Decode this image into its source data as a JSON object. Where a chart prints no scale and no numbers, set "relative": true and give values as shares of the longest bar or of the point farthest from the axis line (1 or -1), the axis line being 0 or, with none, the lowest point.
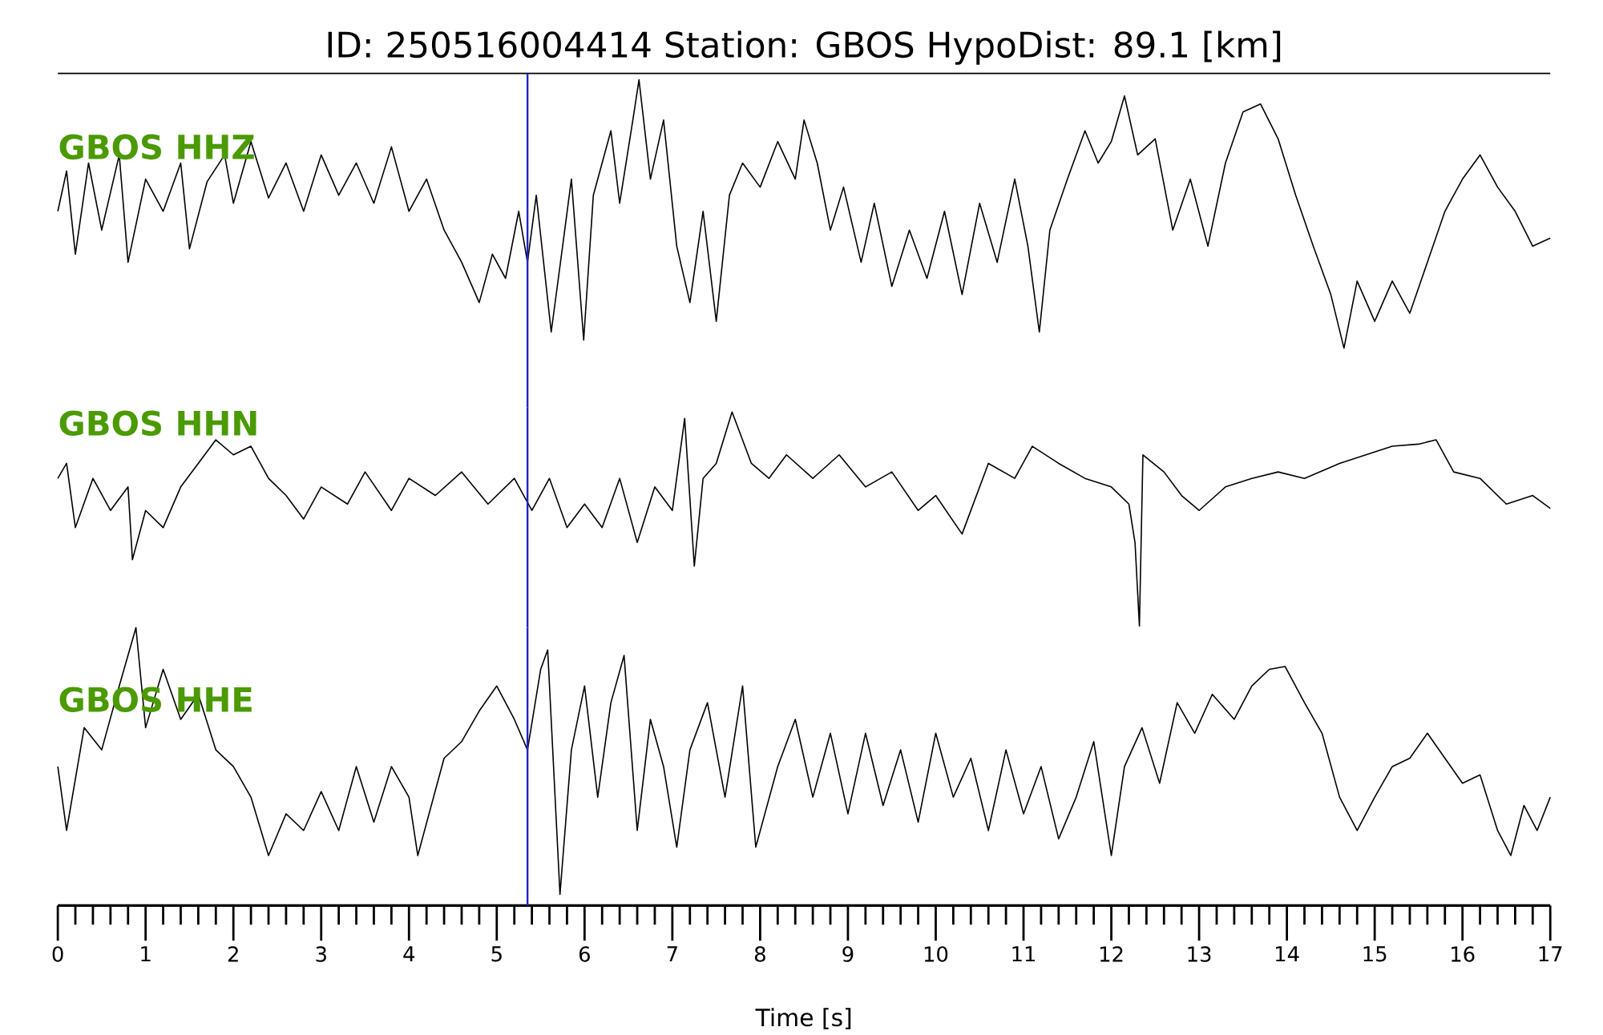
{
  "chart_data": [
    {
      "type": "line",
      "title": "ID: 250516004414 Station: GBOS HypoDist: 89.1 [km]",
      "relative": true,
      "xlim": [
        0,
        17
      ],
      "tick_labels": false,
      "ref_lines": [
        {
          "axis": "x",
          "value": 5.35,
          "color": "#2222cc"
        }
      ],
      "series": [
        {
          "name": "GBOS HHZ",
          "color": "#000000",
          "x": [
            0,
            0.1,
            0.2,
            0.35,
            0.5,
            0.7,
            0.8,
            1.0,
            1.2,
            1.4,
            1.5,
            1.7,
            1.9,
            2.0,
            2.2,
            2.4,
            2.6,
            2.8,
            3.0,
            3.2,
            3.4,
            3.6,
            3.8,
            4.0,
            4.2,
            4.4,
            4.6,
            4.8,
            4.95,
            5.1,
            5.25,
            5.35,
            5.45,
            5.62,
            5.75,
            5.85,
            5.99,
            6.1,
            6.3,
            6.4,
            6.55,
            6.62,
            6.75,
            6.9,
            7.05,
            7.2,
            7.35,
            7.5,
            7.65,
            7.8,
            8.0,
            8.2,
            8.4,
            8.5,
            8.65,
            8.8,
            8.95,
            9.15,
            9.3,
            9.5,
            9.7,
            9.9,
            10.1,
            10.3,
            10.5,
            10.7,
            10.9,
            11.05,
            11.18,
            11.3,
            11.5,
            11.7,
            11.85,
            12.0,
            12.15,
            12.3,
            12.5,
            12.7,
            12.9,
            13.1,
            13.3,
            13.5,
            13.7,
            13.9,
            14.1,
            14.3,
            14.5,
            14.65,
            14.8,
            15.0,
            15.2,
            15.4,
            15.6,
            15.8,
            16.0,
            16.2,
            16.4,
            16.6,
            16.8,
            17.0
          ],
          "values": [
            0.51,
            0.66,
            0.35,
            0.69,
            0.44,
            0.72,
            0.32,
            0.63,
            0.51,
            0.69,
            0.37,
            0.62,
            0.72,
            0.54,
            0.77,
            0.56,
            0.69,
            0.51,
            0.72,
            0.57,
            0.69,
            0.54,
            0.75,
            0.51,
            0.63,
            0.44,
            0.32,
            0.17,
            0.35,
            0.26,
            0.51,
            0.32,
            0.57,
            0.06,
            0.38,
            0.63,
            0.03,
            0.57,
            0.81,
            0.54,
            0.85,
            1.0,
            0.63,
            0.85,
            0.38,
            0.17,
            0.51,
            0.1,
            0.57,
            0.69,
            0.6,
            0.77,
            0.63,
            0.85,
            0.69,
            0.44,
            0.6,
            0.32,
            0.54,
            0.23,
            0.44,
            0.26,
            0.51,
            0.2,
            0.54,
            0.32,
            0.63,
            0.38,
            0.06,
            0.44,
            0.63,
            0.81,
            0.69,
            0.77,
            0.94,
            0.72,
            0.78,
            0.44,
            0.63,
            0.38,
            0.69,
            0.88,
            0.91,
            0.78,
            0.57,
            0.38,
            0.2,
            0.0,
            0.25,
            0.1,
            0.25,
            0.13,
            0.32,
            0.51,
            0.63,
            0.72,
            0.6,
            0.51,
            0.38,
            0.41
          ]
        }
      ]
    },
    {
      "type": "line",
      "relative": true,
      "xlim": [
        0,
        17
      ],
      "tick_labels": false,
      "ref_lines": [
        {
          "axis": "x",
          "value": 5.35,
          "color": "#2222cc"
        }
      ],
      "series": [
        {
          "name": "GBOS HHN",
          "color": "#000000",
          "x": [
            0,
            0.1,
            0.2,
            0.4,
            0.6,
            0.8,
            0.85,
            1.0,
            1.2,
            1.4,
            1.6,
            1.8,
            2.0,
            2.2,
            2.4,
            2.6,
            2.8,
            3.0,
            3.3,
            3.5,
            3.8,
            4.0,
            4.3,
            4.6,
            4.9,
            5.2,
            5.4,
            5.6,
            5.8,
            6.0,
            6.2,
            6.4,
            6.6,
            6.8,
            7.0,
            7.14,
            7.25,
            7.35,
            7.5,
            7.68,
            7.9,
            8.1,
            8.3,
            8.6,
            8.9,
            9.2,
            9.5,
            9.8,
            10.0,
            10.3,
            10.6,
            10.9,
            11.1,
            11.4,
            11.7,
            12.0,
            12.2,
            12.27,
            12.32,
            12.36,
            12.6,
            12.8,
            13.0,
            13.3,
            13.6,
            13.9,
            14.2,
            14.6,
            14.9,
            15.2,
            15.5,
            15.7,
            15.9,
            16.2,
            16.5,
            16.8,
            17.0
          ],
          "values": [
            0.69,
            0.76,
            0.46,
            0.69,
            0.54,
            0.65,
            0.31,
            0.54,
            0.46,
            0.65,
            0.76,
            0.87,
            0.8,
            0.84,
            0.69,
            0.61,
            0.5,
            0.65,
            0.57,
            0.72,
            0.54,
            0.69,
            0.61,
            0.72,
            0.57,
            0.69,
            0.54,
            0.69,
            0.46,
            0.57,
            0.46,
            0.69,
            0.39,
            0.65,
            0.54,
            0.97,
            0.28,
            0.69,
            0.76,
            1.0,
            0.76,
            0.69,
            0.8,
            0.69,
            0.8,
            0.65,
            0.72,
            0.54,
            0.61,
            0.43,
            0.76,
            0.69,
            0.84,
            0.76,
            0.69,
            0.65,
            0.57,
            0.39,
            0.0,
            0.8,
            0.72,
            0.61,
            0.54,
            0.65,
            0.69,
            0.72,
            0.69,
            0.76,
            0.8,
            0.84,
            0.85,
            0.87,
            0.72,
            0.69,
            0.57,
            0.61,
            0.55
          ]
        }
      ]
    },
    {
      "type": "line",
      "relative": true,
      "xlim": [
        0,
        17
      ],
      "xlabel": "Time [s]",
      "tick_labels": "x",
      "xticks": [
        0,
        1,
        2,
        3,
        4,
        5,
        6,
        7,
        8,
        9,
        10,
        11,
        12,
        13,
        14,
        15,
        16,
        17,
        {
          "value": 0.2,
          "label": null
        },
        {
          "value": 0.4,
          "label": null
        },
        {
          "value": 0.6,
          "label": null
        },
        {
          "value": 0.8,
          "label": null
        },
        {
          "value": 1.2,
          "label": null
        },
        {
          "value": 1.4,
          "label": null
        },
        {
          "value": 1.6,
          "label": null
        },
        {
          "value": 1.8,
          "label": null
        },
        {
          "value": 2.2,
          "label": null
        },
        {
          "value": 2.4,
          "label": null
        },
        {
          "value": 2.6,
          "label": null
        },
        {
          "value": 2.8,
          "label": null
        },
        {
          "value": 3.2,
          "label": null
        },
        {
          "value": 3.4,
          "label": null
        },
        {
          "value": 3.6,
          "label": null
        },
        {
          "value": 3.8,
          "label": null
        },
        {
          "value": 4.2,
          "label": null
        },
        {
          "value": 4.4,
          "label": null
        },
        {
          "value": 4.6,
          "label": null
        },
        {
          "value": 4.8,
          "label": null
        },
        {
          "value": 5.2,
          "label": null
        },
        {
          "value": 5.4,
          "label": null
        },
        {
          "value": 5.6,
          "label": null
        },
        {
          "value": 5.8,
          "label": null
        },
        {
          "value": 6.2,
          "label": null
        },
        {
          "value": 6.4,
          "label": null
        },
        {
          "value": 6.6,
          "label": null
        },
        {
          "value": 6.8,
          "label": null
        },
        {
          "value": 7.2,
          "label": null
        },
        {
          "value": 7.4,
          "label": null
        },
        {
          "value": 7.6,
          "label": null
        },
        {
          "value": 7.8,
          "label": null
        },
        {
          "value": 8.2,
          "label": null
        },
        {
          "value": 8.4,
          "label": null
        },
        {
          "value": 8.6,
          "label": null
        },
        {
          "value": 8.8,
          "label": null
        },
        {
          "value": 9.2,
          "label": null
        },
        {
          "value": 9.4,
          "label": null
        },
        {
          "value": 9.6,
          "label": null
        },
        {
          "value": 9.8,
          "label": null
        },
        {
          "value": 10.2,
          "label": null
        },
        {
          "value": 10.4,
          "label": null
        },
        {
          "value": 10.6,
          "label": null
        },
        {
          "value": 10.8,
          "label": null
        },
        {
          "value": 11.2,
          "label": null
        },
        {
          "value": 11.4,
          "label": null
        },
        {
          "value": 11.6,
          "label": null
        },
        {
          "value": 11.8,
          "label": null
        },
        {
          "value": 12.2,
          "label": null
        },
        {
          "value": 12.4,
          "label": null
        },
        {
          "value": 12.6,
          "label": null
        },
        {
          "value": 12.8,
          "label": null
        },
        {
          "value": 13.2,
          "label": null
        },
        {
          "value": 13.4,
          "label": null
        },
        {
          "value": 13.6,
          "label": null
        },
        {
          "value": 13.8,
          "label": null
        },
        {
          "value": 14.2,
          "label": null
        },
        {
          "value": 14.4,
          "label": null
        },
        {
          "value": 14.6,
          "label": null
        },
        {
          "value": 14.8,
          "label": null
        },
        {
          "value": 15.2,
          "label": null
        },
        {
          "value": 15.4,
          "label": null
        },
        {
          "value": 15.6,
          "label": null
        },
        {
          "value": 15.8,
          "label": null
        },
        {
          "value": 16.2,
          "label": null
        },
        {
          "value": 16.4,
          "label": null
        },
        {
          "value": 16.6,
          "label": null
        },
        {
          "value": 16.8,
          "label": null
        }
      ],
      "ref_lines": [
        {
          "axis": "x",
          "value": 5.35,
          "color": "#2222cc"
        }
      ],
      "series": [
        {
          "name": "GBOS HHE",
          "color": "#000000",
          "x": [
            0,
            0.1,
            0.3,
            0.5,
            0.7,
            0.89,
            1.0,
            1.2,
            1.4,
            1.6,
            1.8,
            2.0,
            2.2,
            2.4,
            2.6,
            2.8,
            3.0,
            3.2,
            3.4,
            3.6,
            3.8,
            4.0,
            4.1,
            4.4,
            4.6,
            4.8,
            5.0,
            5.2,
            5.35,
            5.5,
            5.58,
            5.72,
            5.85,
            6.0,
            6.15,
            6.3,
            6.45,
            6.6,
            6.75,
            6.9,
            7.05,
            7.2,
            7.4,
            7.6,
            7.8,
            7.95,
            8.2,
            8.4,
            8.6,
            8.8,
            9.0,
            9.2,
            9.4,
            9.6,
            9.8,
            10.0,
            10.2,
            10.4,
            10.6,
            10.8,
            11.0,
            11.2,
            11.4,
            11.6,
            11.8,
            12.0,
            12.15,
            12.35,
            12.55,
            12.75,
            12.95,
            13.15,
            13.4,
            13.6,
            13.8,
            13.98,
            14.2,
            14.4,
            14.6,
            14.8,
            15.0,
            15.2,
            15.4,
            15.6,
            15.8,
            16.0,
            16.2,
            16.4,
            16.55,
            16.7,
            16.85,
            17.0
          ],
          "values": [
            0.5,
            0.27,
            0.64,
            0.56,
            0.79,
            1.0,
            0.64,
            0.85,
            0.67,
            0.76,
            0.56,
            0.5,
            0.39,
            0.18,
            0.33,
            0.27,
            0.41,
            0.27,
            0.5,
            0.3,
            0.5,
            0.39,
            0.18,
            0.53,
            0.59,
            0.7,
            0.79,
            0.67,
            0.56,
            0.85,
            0.92,
            0.04,
            0.56,
            0.79,
            0.39,
            0.73,
            0.9,
            0.27,
            0.67,
            0.5,
            0.21,
            0.56,
            0.73,
            0.39,
            0.79,
            0.21,
            0.5,
            0.67,
            0.39,
            0.62,
            0.33,
            0.62,
            0.36,
            0.56,
            0.3,
            0.62,
            0.39,
            0.53,
            0.27,
            0.56,
            0.33,
            0.5,
            0.24,
            0.39,
            0.59,
            0.18,
            0.5,
            0.64,
            0.44,
            0.73,
            0.62,
            0.76,
            0.67,
            0.79,
            0.85,
            0.86,
            0.73,
            0.62,
            0.39,
            0.27,
            0.39,
            0.5,
            0.53,
            0.62,
            0.53,
            0.44,
            0.47,
            0.27,
            0.18,
            0.36,
            0.27,
            0.39
          ]
        }
      ]
    }
  ]
}
